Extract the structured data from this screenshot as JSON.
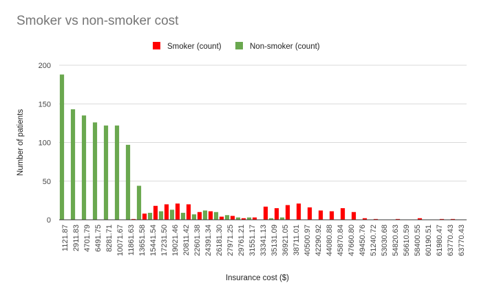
{
  "chart_data": {
    "type": "bar",
    "title": "Smoker vs non-smoker cost",
    "xlabel": "Insurance cost ($)",
    "ylabel": "Number of patients",
    "ylim": [
      0,
      200
    ],
    "yticks": [
      0,
      50,
      100,
      150,
      200
    ],
    "grid": true,
    "legend_position": "top",
    "categories": [
      "1121.87",
      "2911.83",
      "4701.79",
      "6491.75",
      "8281.71",
      "10071.67",
      "11861.63",
      "13651.58",
      "15441.54",
      "17231.50",
      "19021.46",
      "20811.42",
      "22601.38",
      "24391.34",
      "26181.30",
      "27971.25",
      "29761.21",
      "31551.17",
      "33341.13",
      "35131.09",
      "36921.05",
      "38711.01",
      "40500.97",
      "42290.92",
      "44080.88",
      "45870.84",
      "47660.80",
      "49450.76",
      "51240.72",
      "53030.68",
      "54820.63",
      "56610.59",
      "58400.55",
      "60190.51",
      "61980.47",
      "63770.43",
      "63770.43"
    ],
    "series": [
      {
        "name": "Smoker (count)",
        "color": "#ff0000",
        "values": [
          0,
          0,
          0,
          0,
          0,
          0,
          1,
          8,
          18,
          20,
          21,
          20,
          10,
          11,
          4,
          5,
          2,
          3,
          17,
          15,
          19,
          21,
          16,
          12,
          11,
          15,
          10,
          2,
          1,
          0,
          1,
          0,
          2,
          0,
          1,
          1,
          0
        ]
      },
      {
        "name": "Non-smoker (count)",
        "color": "#6aa84f",
        "values": [
          188,
          143,
          135,
          126,
          122,
          122,
          97,
          44,
          9,
          11,
          13,
          9,
          7,
          12,
          10,
          6,
          3,
          3,
          0,
          2,
          3,
          0,
          0,
          0,
          0,
          0,
          0,
          0,
          0,
          0,
          0,
          0,
          0,
          0,
          0,
          0,
          0
        ]
      }
    ]
  }
}
